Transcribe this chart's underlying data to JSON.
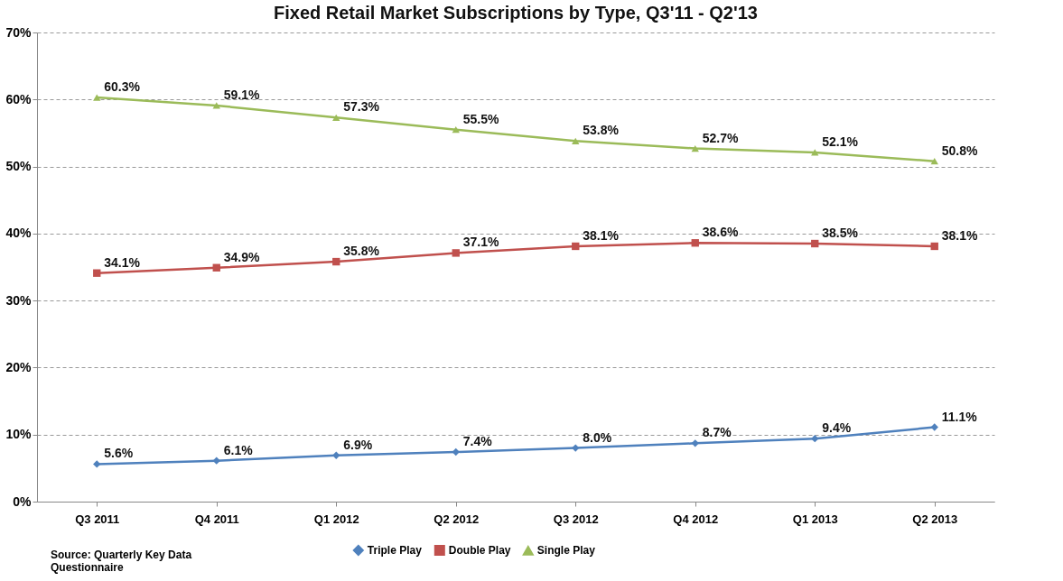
{
  "chart_data": {
    "type": "line",
    "title": "Fixed Retail Market Subscriptions by Type, Q3'11 - Q2'13",
    "categories": [
      "Q3 2011",
      "Q4 2011",
      "Q1 2012",
      "Q2 2012",
      "Q3 2012",
      "Q4 2012",
      "Q1 2013",
      "Q2 2013"
    ],
    "series": [
      {
        "name": "Triple Play",
        "color": "#4f81bd",
        "marker": "diamond",
        "values": [
          5.6,
          6.1,
          6.9,
          7.4,
          8.0,
          8.7,
          9.4,
          11.1
        ],
        "value_labels": [
          "5.6%",
          "6.1%",
          "6.9%",
          "7.4%",
          "8.0%",
          "8.7%",
          "9.4%",
          "11.1%"
        ]
      },
      {
        "name": "Double Play",
        "color": "#c0504d",
        "marker": "square",
        "values": [
          34.1,
          34.9,
          35.8,
          37.1,
          38.1,
          38.6,
          38.5,
          38.1
        ],
        "value_labels": [
          "34.1%",
          "34.9%",
          "35.8%",
          "37.1%",
          "38.1%",
          "38.6%",
          "38.5%",
          "38.1%"
        ]
      },
      {
        "name": "Single Play",
        "color": "#9bbb59",
        "marker": "triangle",
        "values": [
          60.3,
          59.1,
          57.3,
          55.5,
          53.8,
          52.7,
          52.1,
          50.8
        ],
        "value_labels": [
          "60.3%",
          "59.1%",
          "57.3%",
          "55.5%",
          "53.8%",
          "52.7%",
          "52.1%",
          "50.8%"
        ]
      }
    ],
    "ylim": [
      0,
      70
    ],
    "yticks": [
      {
        "value": 0,
        "label": "0%"
      },
      {
        "value": 10,
        "label": "10%"
      },
      {
        "value": 20,
        "label": "20%"
      },
      {
        "value": 30,
        "label": "30%"
      },
      {
        "value": 40,
        "label": "40%"
      },
      {
        "value": 50,
        "label": "50%"
      },
      {
        "value": 60,
        "label": "60%"
      },
      {
        "value": 70,
        "label": "70%"
      }
    ],
    "grid": "y",
    "legend": "bottom",
    "line_style": "solid",
    "annotations": [
      "Source: Quarterly Key Data Questionnaire"
    ]
  }
}
